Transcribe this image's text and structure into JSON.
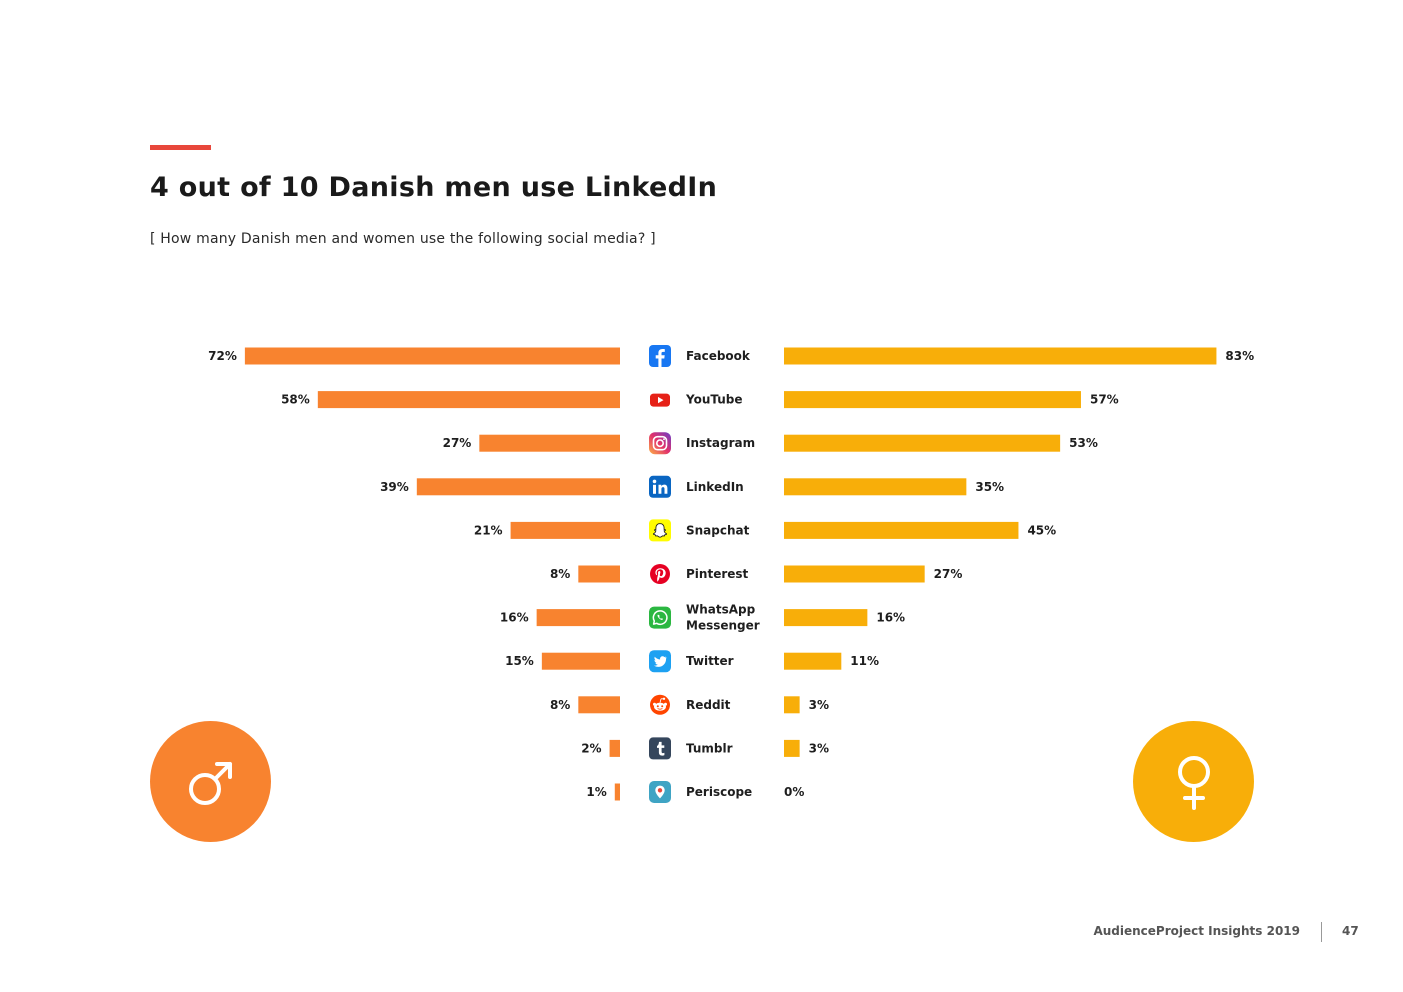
{
  "title": "4 out of 10 Danish men use LinkedIn",
  "subtitle": "[ How many Danish men and women use the following social media? ]",
  "footer": {
    "brand": "AudienceProject Insights 2019",
    "page": "47"
  },
  "colors": {
    "men": "#f8832f",
    "women": "#f8ae09",
    "accent": "#e8473b"
  },
  "gender_icons": {
    "men": "male-symbol-icon",
    "women": "female-symbol-icon"
  },
  "chart_data": {
    "type": "bar",
    "orientation": "horizontal-diverging",
    "title": "4 out of 10 Danish men use LinkedIn",
    "categories": [
      {
        "label": [
          "Facebook"
        ],
        "icon": "facebook-icon"
      },
      {
        "label": [
          "YouTube"
        ],
        "icon": "youtube-icon"
      },
      {
        "label": [
          "Instagram"
        ],
        "icon": "instagram-icon"
      },
      {
        "label": [
          "LinkedIn"
        ],
        "icon": "linkedin-icon"
      },
      {
        "label": [
          "Snapchat"
        ],
        "icon": "snapchat-icon"
      },
      {
        "label": [
          "Pinterest"
        ],
        "icon": "pinterest-icon"
      },
      {
        "label": [
          "WhatsApp",
          "Messenger"
        ],
        "icon": "whatsapp-icon"
      },
      {
        "label": [
          "Twitter"
        ],
        "icon": "twitter-icon"
      },
      {
        "label": [
          "Reddit"
        ],
        "icon": "reddit-icon"
      },
      {
        "label": [
          "Tumblr"
        ],
        "icon": "tumblr-icon"
      },
      {
        "label": [
          "Periscope"
        ],
        "icon": "periscope-icon"
      }
    ],
    "series": [
      {
        "name": "Men",
        "side": "left",
        "color": "#f8832f",
        "values": [
          72,
          58,
          27,
          39,
          21,
          8,
          16,
          15,
          8,
          2,
          1
        ]
      },
      {
        "name": "Women",
        "side": "right",
        "color": "#f8ae09",
        "values": [
          83,
          57,
          53,
          35,
          45,
          27,
          16,
          11,
          3,
          3,
          0
        ]
      }
    ],
    "unit": "%",
    "xlim": [
      0,
      100
    ]
  }
}
